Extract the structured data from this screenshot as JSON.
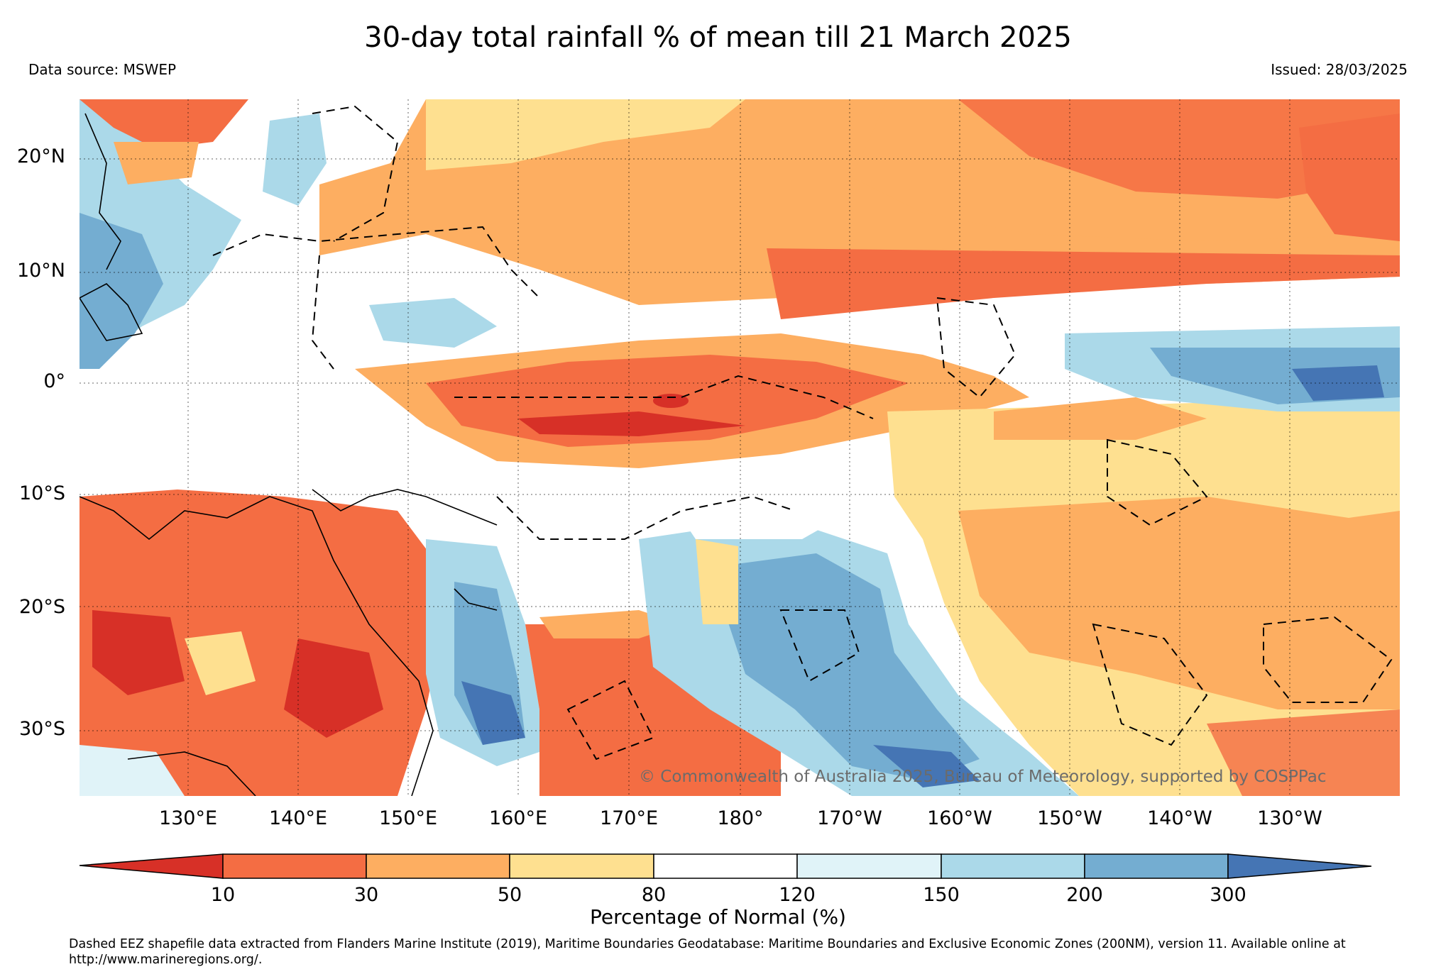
{
  "title": "30-day total rainfall % of mean till 21 March 2025",
  "data_source": "Data source: MSWEP",
  "issued": "Issued: 28/03/2025",
  "map": {
    "latitude_labels": [
      "20°N",
      "10°N",
      "0°",
      "10°S",
      "20°S",
      "30°S"
    ],
    "longitude_labels": [
      "130°E",
      "140°E",
      "150°E",
      "160°E",
      "170°E",
      "180°",
      "170°W",
      "160°W",
      "150°W",
      "140°W",
      "130°W"
    ],
    "copyright": "© Commonwealth of Australia 2025, Bureau of Meteorology, supported by COSPPac"
  },
  "colorbar": {
    "ticks": [
      "10",
      "30",
      "50",
      "80",
      "120",
      "150",
      "200",
      "300"
    ],
    "title": "Percentage of Normal (%)",
    "colors": {
      "lt10": "#d73027",
      "10-30": "#f46d43",
      "30-50": "#fdae61",
      "50-80": "#fee090",
      "80-120": "#ffffff",
      "120-150": "#e0f3f8",
      "150-200": "#abd9e9",
      "200-300": "#74add1",
      "gt300": "#4575b4"
    }
  },
  "footnote": "Dashed EEZ shapefile data extracted from Flanders Marine Institute (2019), Maritime Boundaries Geodatabase: Maritime Boundaries and Exclusive Economic Zones (200NM), version 11. Available online at http://www.marineregions.org/."
}
